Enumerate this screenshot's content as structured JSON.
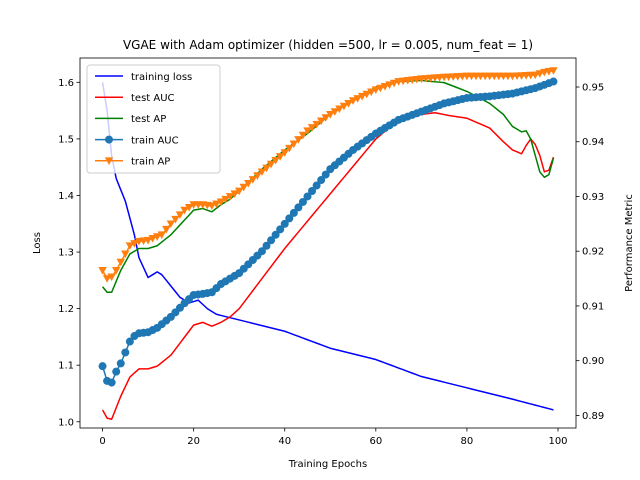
{
  "chart_data": {
    "type": "line",
    "title": "VGAE with Adam optimizer (hidden =500, lr = 0.005, num_feat = 1)",
    "xlabel": "Training Epochs",
    "ylabel_left": "Loss",
    "ylabel_right": "Performance Metric",
    "xlim": [
      -4.95,
      103.95
    ],
    "ylim_left": [
      0.989,
      1.643
    ],
    "ylim_right": [
      0.8877,
      0.9553
    ],
    "x_ticks": [
      0,
      20,
      40,
      60,
      80,
      100
    ],
    "y_ticks_left": [
      1.0,
      1.1,
      1.2,
      1.3,
      1.4,
      1.5,
      1.6
    ],
    "y_ticks_left_labels": [
      "1.0",
      "1.1",
      "1.2",
      "1.3",
      "1.4",
      "1.5",
      "1.6"
    ],
    "y_ticks_right": [
      0.89,
      0.9,
      0.91,
      0.92,
      0.93,
      0.94,
      0.95
    ],
    "y_ticks_right_labels": [
      "0.89",
      "0.90",
      "0.91",
      "0.92",
      "0.93",
      "0.94",
      "0.95"
    ],
    "grid": false,
    "legend_position": "top-left",
    "series": [
      {
        "name": "training loss",
        "axis": "left",
        "color": "#0000ff",
        "marker": "none",
        "anchors": [
          [
            0,
            1.6
          ],
          [
            1,
            1.55
          ],
          [
            2,
            1.47
          ],
          [
            3,
            1.43
          ],
          [
            5,
            1.39
          ],
          [
            7,
            1.33
          ],
          [
            8,
            1.29
          ],
          [
            10,
            1.255
          ],
          [
            11,
            1.26
          ],
          [
            12,
            1.265
          ],
          [
            13,
            1.26
          ],
          [
            15,
            1.24
          ],
          [
            17,
            1.22
          ],
          [
            19,
            1.21
          ],
          [
            21,
            1.215
          ],
          [
            23,
            1.2
          ],
          [
            25,
            1.19
          ],
          [
            30,
            1.18
          ],
          [
            40,
            1.16
          ],
          [
            50,
            1.13
          ],
          [
            60,
            1.11
          ],
          [
            70,
            1.08
          ],
          [
            80,
            1.06
          ],
          [
            90,
            1.04
          ],
          [
            99,
            1.021
          ]
        ]
      },
      {
        "name": "test AUC",
        "axis": "right",
        "color": "#ff0000",
        "marker": "none",
        "anchors": [
          [
            0,
            0.891
          ],
          [
            1,
            0.8895
          ],
          [
            2,
            0.8893
          ],
          [
            4,
            0.8935
          ],
          [
            6,
            0.897
          ],
          [
            8,
            0.8985
          ],
          [
            10,
            0.8985
          ],
          [
            12,
            0.899
          ],
          [
            15,
            0.901
          ],
          [
            20,
            0.9065
          ],
          [
            22,
            0.907
          ],
          [
            24,
            0.9063
          ],
          [
            26,
            0.907
          ],
          [
            28,
            0.908
          ],
          [
            30,
            0.9095
          ],
          [
            35,
            0.915
          ],
          [
            40,
            0.9205
          ],
          [
            45,
            0.9255
          ],
          [
            50,
            0.9305
          ],
          [
            55,
            0.9355
          ],
          [
            60,
            0.9405
          ],
          [
            65,
            0.944
          ],
          [
            70,
            0.945
          ],
          [
            73,
            0.9453
          ],
          [
            76,
            0.9448
          ],
          [
            80,
            0.9443
          ],
          [
            85,
            0.9425
          ],
          [
            88,
            0.94
          ],
          [
            90,
            0.9385
          ],
          [
            92,
            0.9378
          ],
          [
            93,
            0.9393
          ],
          [
            94,
            0.9405
          ],
          [
            95,
            0.9395
          ],
          [
            96,
            0.9375
          ],
          [
            97,
            0.9345
          ],
          [
            98,
            0.9348
          ],
          [
            99,
            0.9372
          ]
        ]
      },
      {
        "name": "test AP",
        "axis": "right",
        "color": "#008000",
        "marker": "none",
        "anchors": [
          [
            0,
            0.9135
          ],
          [
            1,
            0.9125
          ],
          [
            2,
            0.9125
          ],
          [
            4,
            0.9165
          ],
          [
            6,
            0.9195
          ],
          [
            8,
            0.9205
          ],
          [
            10,
            0.9205
          ],
          [
            12,
            0.921
          ],
          [
            15,
            0.923
          ],
          [
            20,
            0.9275
          ],
          [
            22,
            0.9278
          ],
          [
            24,
            0.9272
          ],
          [
            26,
            0.9285
          ],
          [
            28,
            0.9295
          ],
          [
            30,
            0.931
          ],
          [
            35,
            0.935
          ],
          [
            40,
            0.9385
          ],
          [
            45,
            0.9415
          ],
          [
            50,
            0.945
          ],
          [
            55,
            0.9475
          ],
          [
            60,
            0.95
          ],
          [
            65,
            0.951
          ],
          [
            70,
            0.9512
          ],
          [
            75,
            0.9508
          ],
          [
            80,
            0.9492
          ],
          [
            85,
            0.947
          ],
          [
            88,
            0.945
          ],
          [
            90,
            0.9428
          ],
          [
            92,
            0.9418
          ],
          [
            93,
            0.942
          ],
          [
            94,
            0.9405
          ],
          [
            95,
            0.9375
          ],
          [
            96,
            0.9345
          ],
          [
            97,
            0.9335
          ],
          [
            98,
            0.934
          ],
          [
            99,
            0.937
          ]
        ]
      },
      {
        "name": "train AUC",
        "axis": "right",
        "color": "#1f77b4",
        "marker": "circle",
        "anchors": [
          [
            0,
            0.899
          ],
          [
            1,
            0.8963
          ],
          [
            2,
            0.896
          ],
          [
            3,
            0.898
          ],
          [
            4,
            0.8995
          ],
          [
            5,
            0.9015
          ],
          [
            6,
            0.9035
          ],
          [
            7,
            0.9045
          ],
          [
            8,
            0.905
          ],
          [
            10,
            0.9052
          ],
          [
            12,
            0.906
          ],
          [
            15,
            0.908
          ],
          [
            18,
            0.9105
          ],
          [
            20,
            0.912
          ],
          [
            22,
            0.9122
          ],
          [
            24,
            0.9125
          ],
          [
            26,
            0.914
          ],
          [
            30,
            0.916
          ],
          [
            35,
            0.92
          ],
          [
            40,
            0.925
          ],
          [
            45,
            0.93
          ],
          [
            50,
            0.935
          ],
          [
            55,
            0.9385
          ],
          [
            60,
            0.9415
          ],
          [
            65,
            0.944
          ],
          [
            70,
            0.9455
          ],
          [
            75,
            0.947
          ],
          [
            80,
            0.948
          ],
          [
            85,
            0.9483
          ],
          [
            90,
            0.9488
          ],
          [
            95,
            0.9498
          ],
          [
            99,
            0.951
          ]
        ]
      },
      {
        "name": "train AP",
        "axis": "right",
        "color": "#ff7f0e",
        "marker": "triangle_down",
        "anchors": [
          [
            0,
            0.9165
          ],
          [
            1,
            0.915
          ],
          [
            2,
            0.9153
          ],
          [
            3,
            0.9165
          ],
          [
            4,
            0.918
          ],
          [
            5,
            0.9195
          ],
          [
            6,
            0.921
          ],
          [
            8,
            0.9218
          ],
          [
            10,
            0.922
          ],
          [
            13,
            0.923
          ],
          [
            15,
            0.925
          ],
          [
            18,
            0.9275
          ],
          [
            20,
            0.9285
          ],
          [
            22,
            0.9285
          ],
          [
            24,
            0.9283
          ],
          [
            26,
            0.929
          ],
          [
            30,
            0.931
          ],
          [
            35,
            0.9345
          ],
          [
            40,
            0.938
          ],
          [
            45,
            0.942
          ],
          [
            50,
            0.945
          ],
          [
            55,
            0.9475
          ],
          [
            60,
            0.9495
          ],
          [
            65,
            0.951
          ],
          [
            70,
            0.9515
          ],
          [
            75,
            0.9518
          ],
          [
            80,
            0.952
          ],
          [
            85,
            0.952
          ],
          [
            90,
            0.952
          ],
          [
            95,
            0.9522
          ],
          [
            97,
            0.9527
          ],
          [
            99,
            0.953
          ]
        ]
      }
    ]
  }
}
